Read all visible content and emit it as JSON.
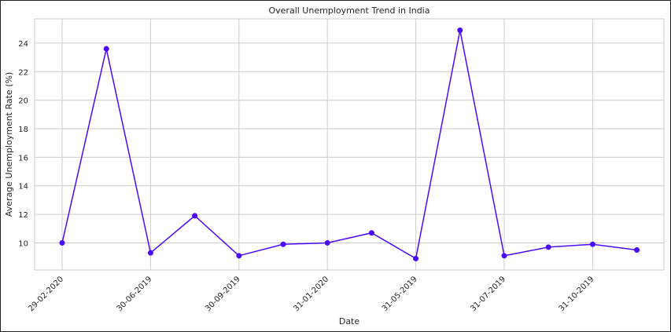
{
  "chart_data": {
    "type": "line",
    "title": "Overall Unemployment Trend in India",
    "xlabel": "Date",
    "ylabel": "Average Unemployment Rate (%)",
    "x_ticks": [
      "29-02-2020",
      "30-06-2019",
      "30-09-2019",
      "31-01-2020",
      "31-05-2019",
      "31-07-2019",
      "31-10-2019"
    ],
    "y_ticks": [
      10,
      12,
      14,
      16,
      18,
      20,
      22,
      24
    ],
    "ylim": [
      8.1,
      25.7
    ],
    "grid": true,
    "series": [
      {
        "color": "#4b0aff",
        "values": [
          10.0,
          23.6,
          9.3,
          11.9,
          9.1,
          9.9,
          10.0,
          10.7,
          8.9,
          24.9,
          9.1,
          9.7,
          9.9,
          9.5
        ]
      }
    ]
  }
}
